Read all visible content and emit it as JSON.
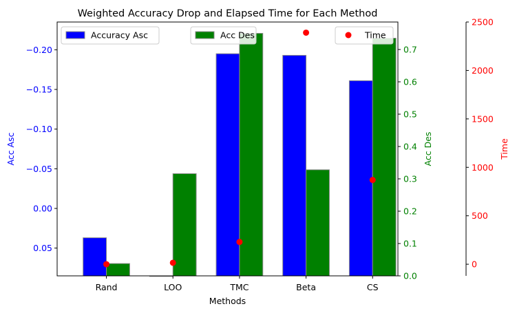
{
  "chart_data": {
    "type": "bar",
    "title": "Weighted Accuracy Drop and Elapsed Time for Each Method",
    "xlabel": "Methods",
    "categories": [
      "Rand",
      "LOO",
      "TMC",
      "Beta",
      "CS"
    ],
    "axes": {
      "left": {
        "label": "Acc Asc",
        "inverted": true,
        "range": [
          0.085,
          -0.235
        ],
        "ticks": [
          -0.2,
          -0.15,
          -0.1,
          -0.05,
          0.0,
          0.05
        ],
        "tick_labels": [
          "−0.20",
          "−0.15",
          "−0.10",
          "−0.05",
          "0.00",
          "0.05"
        ],
        "color": "#0000ff"
      },
      "right": {
        "label": "Acc Des",
        "range": [
          0.0,
          0.785
        ],
        "ticks": [
          0.0,
          0.1,
          0.2,
          0.3,
          0.4,
          0.5,
          0.6,
          0.7
        ],
        "tick_labels": [
          "0.0",
          "0.1",
          "0.2",
          "0.3",
          "0.4",
          "0.5",
          "0.6",
          "0.7"
        ],
        "color": "#008000"
      },
      "time": {
        "label": "Time",
        "range": [
          -120,
          2500
        ],
        "ticks": [
          0,
          500,
          1000,
          1500,
          2000,
          2500
        ],
        "tick_labels": [
          "0",
          "500",
          "1000",
          "1500",
          "2000",
          "2500"
        ],
        "color": "#ff0000"
      }
    },
    "series": [
      {
        "name": "Accuracy Asc",
        "kind": "bar",
        "axis": "left",
        "color": "#0000ff",
        "values": [
          0.037,
          0.085,
          -0.195,
          -0.193,
          -0.161
        ]
      },
      {
        "name": "Acc Des",
        "kind": "bar",
        "axis": "right",
        "color": "#008000",
        "values": [
          0.038,
          0.316,
          0.75,
          0.328,
          0.735
        ]
      },
      {
        "name": "Time",
        "kind": "scatter",
        "axis": "time",
        "color": "#ff0000",
        "values": [
          0,
          15,
          230,
          2390,
          870
        ]
      }
    ],
    "legend": {
      "placement": "top",
      "entries": [
        "Accuracy Asc",
        "Acc Des",
        "Time"
      ]
    }
  }
}
